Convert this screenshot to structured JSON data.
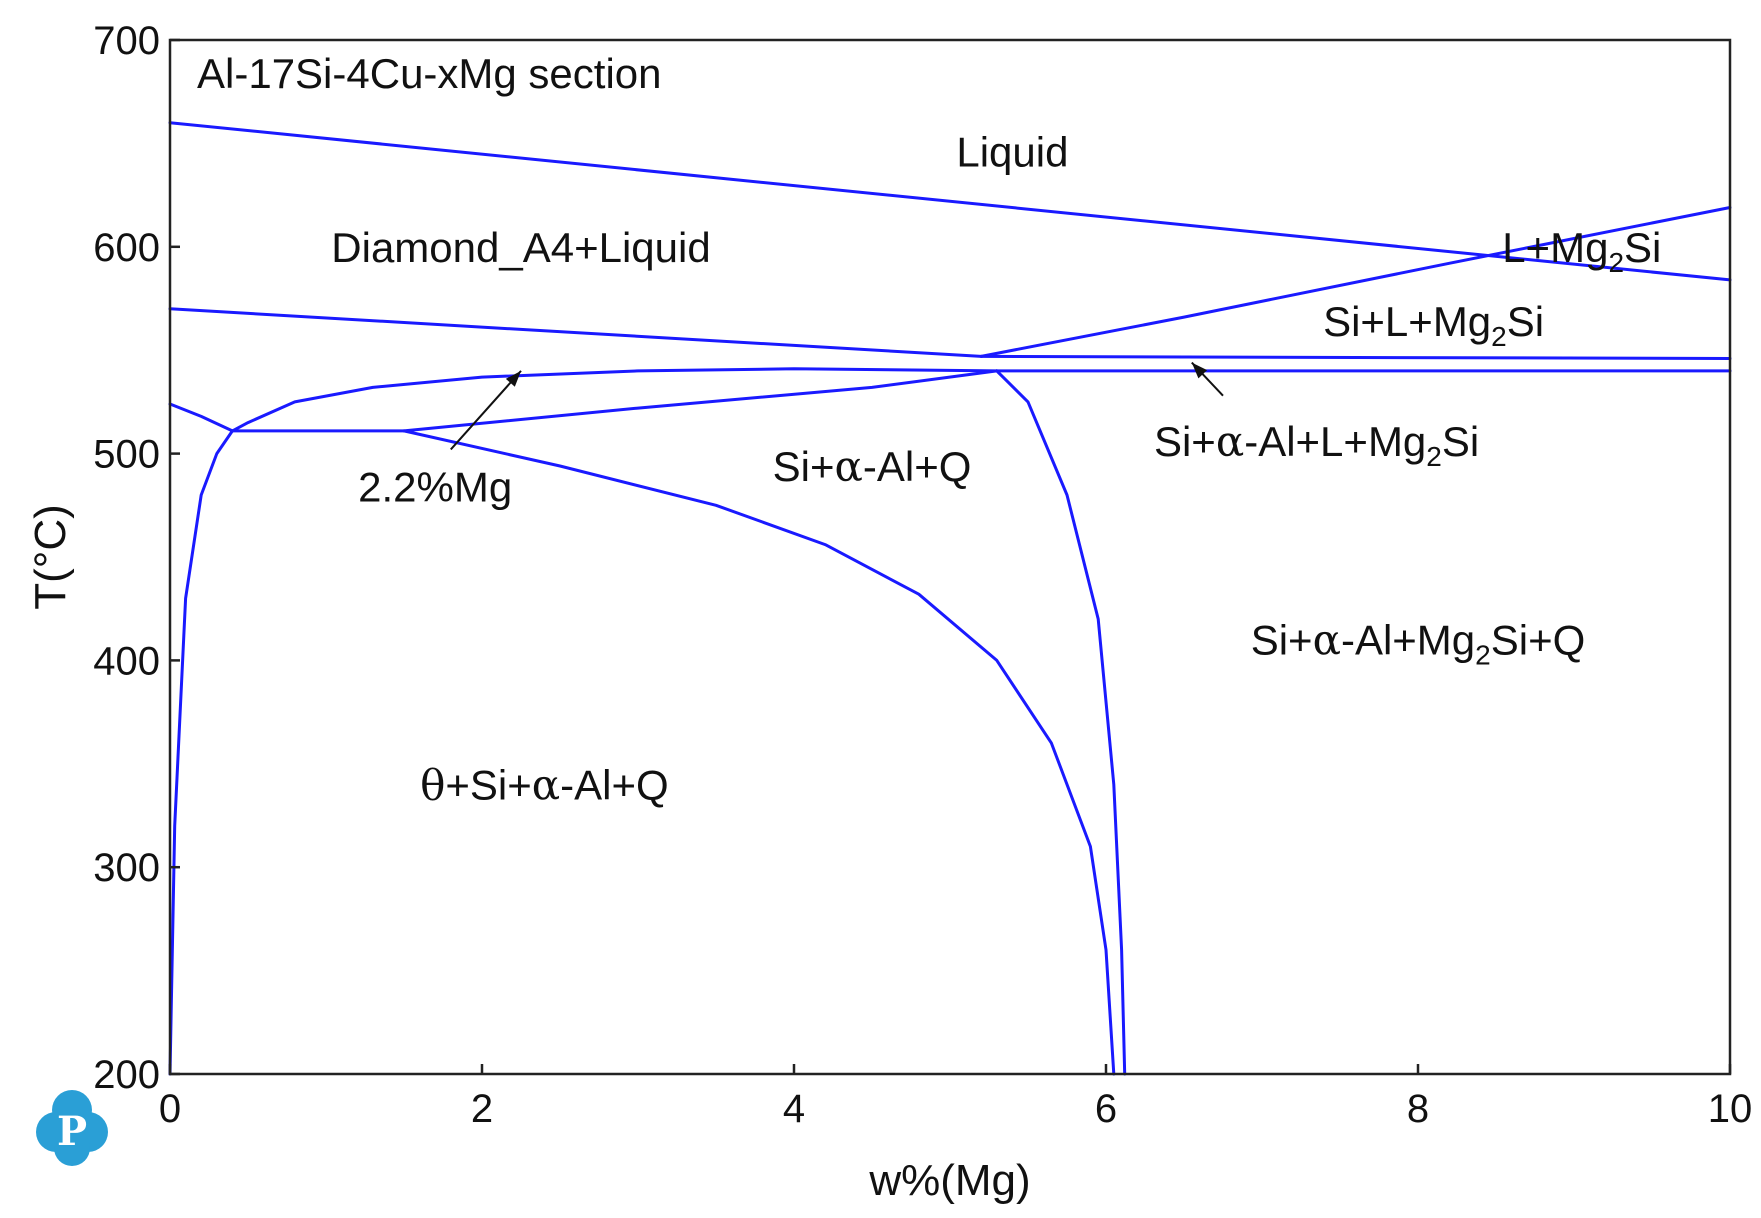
{
  "chart_data": {
    "type": "line",
    "title": "Al-17Si-4Cu-xMg section",
    "xlabel": "w%(Mg)",
    "ylabel": "T(°C)",
    "xlim": [
      0,
      10
    ],
    "ylim": [
      200,
      700
    ],
    "x_ticks": [
      0,
      2,
      4,
      6,
      8,
      10
    ],
    "y_ticks": [
      200,
      300,
      400,
      500,
      600,
      700
    ],
    "grid": false,
    "line_color": "#1a1aff",
    "series": [
      {
        "values": [
          [
            0,
            660
          ],
          [
            10,
            584
          ]
        ]
      },
      {
        "values": [
          [
            0,
            570
          ],
          [
            5.2,
            547
          ]
        ]
      },
      {
        "values": [
          [
            5.2,
            547
          ],
          [
            6.5,
            566
          ],
          [
            8.2,
            592
          ],
          [
            10,
            619
          ]
        ]
      },
      {
        "values": [
          [
            5.2,
            547
          ],
          [
            10,
            546
          ]
        ]
      },
      {
        "values": [
          [
            5.3,
            540
          ],
          [
            10,
            540
          ]
        ]
      },
      {
        "values": [
          [
            0,
            524
          ],
          [
            0.2,
            518
          ],
          [
            0.4,
            511
          ]
        ]
      },
      {
        "values": [
          [
            0,
            200
          ],
          [
            0.03,
            320
          ],
          [
            0.1,
            430
          ],
          [
            0.2,
            480
          ],
          [
            0.3,
            500
          ],
          [
            0.4,
            511
          ]
        ]
      },
      {
        "values": [
          [
            0.4,
            511
          ],
          [
            0.5,
            515
          ],
          [
            0.8,
            525
          ],
          [
            1.3,
            532
          ],
          [
            2,
            537
          ],
          [
            3,
            540
          ],
          [
            4,
            541
          ],
          [
            5.3,
            540
          ]
        ]
      },
      {
        "values": [
          [
            0.4,
            511
          ],
          [
            1.5,
            511
          ]
        ]
      },
      {
        "values": [
          [
            1.5,
            511
          ],
          [
            3,
            522
          ],
          [
            4.5,
            532
          ],
          [
            5.3,
            540
          ]
        ]
      },
      {
        "values": [
          [
            1.5,
            511
          ],
          [
            2.5,
            494
          ],
          [
            3.5,
            475
          ],
          [
            4.2,
            456
          ],
          [
            4.8,
            432
          ],
          [
            5.3,
            400
          ],
          [
            5.65,
            360
          ],
          [
            5.9,
            310
          ],
          [
            6.0,
            260
          ],
          [
            6.05,
            200
          ]
        ]
      },
      {
        "values": [
          [
            5.3,
            540
          ],
          [
            5.5,
            525
          ],
          [
            5.75,
            480
          ],
          [
            5.95,
            420
          ],
          [
            6.05,
            340
          ],
          [
            6.1,
            260
          ],
          [
            6.12,
            200
          ]
        ]
      }
    ],
    "region_labels": [
      {
        "text": "Liquid",
        "x": 5.4,
        "y": 646
      },
      {
        "text": "Diamond_A4+Liquid",
        "x": 2.25,
        "y": 600
      },
      {
        "text": "L+Mg",
        "sub": "2",
        "post": "Si",
        "x": 9.05,
        "y": 600
      },
      {
        "text": "Si+L+Mg",
        "sub": "2",
        "post": "Si",
        "x": 8.1,
        "y": 564
      },
      {
        "text": "Si+",
        "greek": "α",
        "post": "-Al+L+Mg",
        "sub": "2",
        "post2": "Si",
        "x": 7.35,
        "y": 506
      },
      {
        "text": "Si+",
        "greek": "α",
        "post": "-Al+Q",
        "x": 4.5,
        "y": 494
      },
      {
        "text": "Si+",
        "greek": "α",
        "post": "-Al+Mg",
        "sub": "2",
        "post2": "Si+Q",
        "x": 8.0,
        "y": 410
      },
      {
        "text": "",
        "greek": "θ",
        "post": "+Si+",
        "greek2": "α",
        "post2": "-Al+Q",
        "x": 2.4,
        "y": 340
      }
    ],
    "annotations": [
      {
        "text": "2.2%Mg",
        "color": "#e02020",
        "x": 1.7,
        "y": 484,
        "arrow_from": [
          1.8,
          502
        ],
        "arrow_to": [
          2.25,
          540
        ]
      },
      {
        "text": "",
        "arrow_from": [
          6.75,
          528
        ],
        "arrow_to": [
          6.55,
          544
        ]
      }
    ]
  },
  "logo": {
    "letter": "P",
    "color": "#2a9fd6"
  }
}
